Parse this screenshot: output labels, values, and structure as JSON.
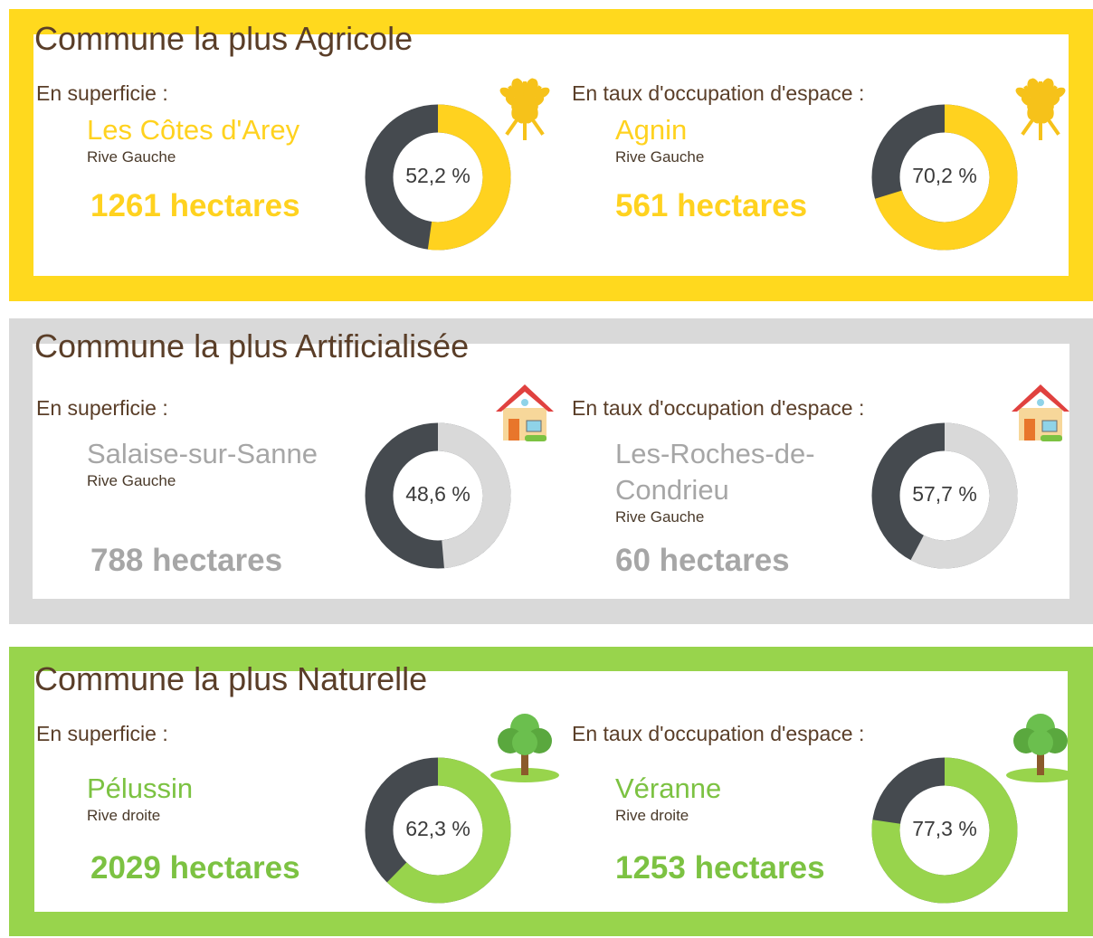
{
  "panels": [
    {
      "title": "Commune la plus Agricole",
      "border_color": "#FFD91E",
      "accent_color": "#FFD21F",
      "text_color": "#FFD21F",
      "items": [
        {
          "heading": "En superficie :",
          "commune": "Les Côtes d'Arey",
          "rive": "Rive Gauche",
          "area": "1261 hectares",
          "share": 52.2,
          "share_label": "52,2 %"
        },
        {
          "heading": "En taux d'occupation d'espace :",
          "commune": "Agnin",
          "rive": "Rive Gauche",
          "area": "561 hectares",
          "share": 70.2,
          "share_label": "70,2 %"
        }
      ]
    },
    {
      "title": "Commune la plus Artificialisée",
      "border_color": "#D9D9D9",
      "accent_color": "#D9D9D9",
      "text_color": "#A6A6A6",
      "items": [
        {
          "heading": "En superficie :",
          "commune": "Salaise-sur-Sanne",
          "rive": "Rive Gauche",
          "area": "788 hectares",
          "share": 48.6,
          "share_label": "48,6 %"
        },
        {
          "heading": "En taux d'occupation d'espace :",
          "commune": "Les-Roches-de-Condrieu",
          "rive": "Rive Gauche",
          "area": "60 hectares",
          "share": 57.7,
          "share_label": "57,7 %"
        }
      ]
    },
    {
      "title": "Commune la plus Naturelle",
      "border_color": "#98D44C",
      "accent_color": "#98D44C",
      "text_color": "#7CC242",
      "items": [
        {
          "heading": "En superficie  :",
          "commune": "Pélussin",
          "rive": "Rive droite",
          "area": "2029 hectares",
          "share": 62.3,
          "share_label": "62,3 %"
        },
        {
          "heading": "En taux d'occupation d'espace :",
          "commune": "Véranne",
          "rive": "Rive droite",
          "area": "1253 hectares",
          "share": 77.3,
          "share_label": "77,3 %"
        }
      ]
    }
  ]
}
